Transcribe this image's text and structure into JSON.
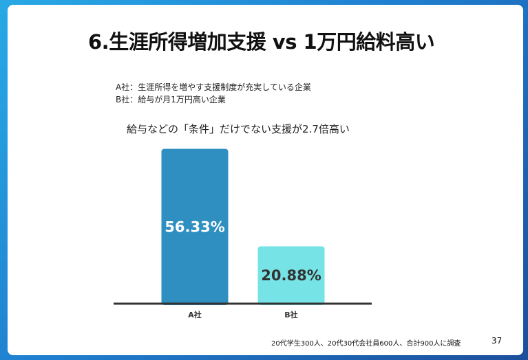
{
  "slide": {
    "title": "6.生涯所得増加支援 vs 1万円給料高い",
    "legend": [
      "A社：生涯所得を増やす支援制度が充実している企業",
      "B社：給与が月1万円高い企業"
    ],
    "subtitle": "給与などの「条件」だけでない支援が2.7倍高い",
    "footnote": "20代学生300人、20代30代会社員600人、合計900人に調査",
    "page_number": "37"
  },
  "chart_data": {
    "type": "bar",
    "categories": [
      "A社",
      "B社"
    ],
    "values": [
      56.33,
      20.88
    ],
    "value_labels": [
      "56.33%",
      "20.88%"
    ],
    "colors": [
      "#2f8fc0",
      "#76e4e6"
    ],
    "label_colors": [
      "#ffffff",
      "#333333"
    ],
    "ylim": [
      0,
      60
    ],
    "grid": false,
    "legend": "none"
  }
}
